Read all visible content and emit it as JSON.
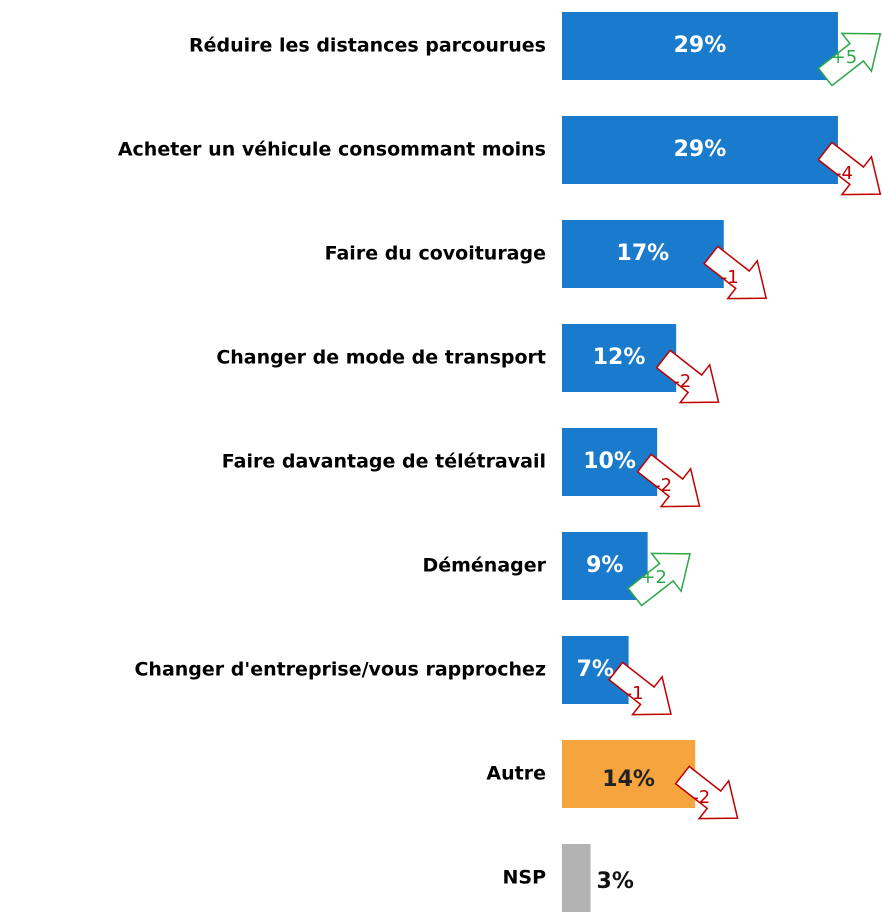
{
  "chart_data": {
    "type": "hbar",
    "categories": [
      "Réduire les distances parcourues",
      "Acheter un véhicule consommant moins",
      "Faire du covoiturage",
      "Changer de mode de transport",
      "Faire davantage de télétravail",
      "Déménager",
      "Changer d'entreprise/vous rapprochez",
      "Autre",
      "NSP"
    ],
    "values": [
      29,
      29,
      17,
      12,
      10,
      9,
      7,
      14,
      3
    ],
    "value_labels": [
      "29%",
      "29%",
      "17%",
      "12%",
      "10%",
      "9%",
      "7%",
      "14%",
      "3%"
    ],
    "colors": [
      "#1a7acb",
      "#1a7acb",
      "#1a7acb",
      "#1a7acb",
      "#1a7acb",
      "#1a7acb",
      "#1a7acb",
      "#f6a43e",
      "#b3b3b3"
    ],
    "changes": [
      5,
      -4,
      -1,
      -2,
      -2,
      2,
      -1,
      -2,
      null
    ],
    "change_labels": [
      "+5",
      "-4",
      "-1",
      "-2",
      "-2",
      "+2",
      "-1",
      "-2",
      null
    ],
    "xlim": [
      0,
      33
    ]
  }
}
